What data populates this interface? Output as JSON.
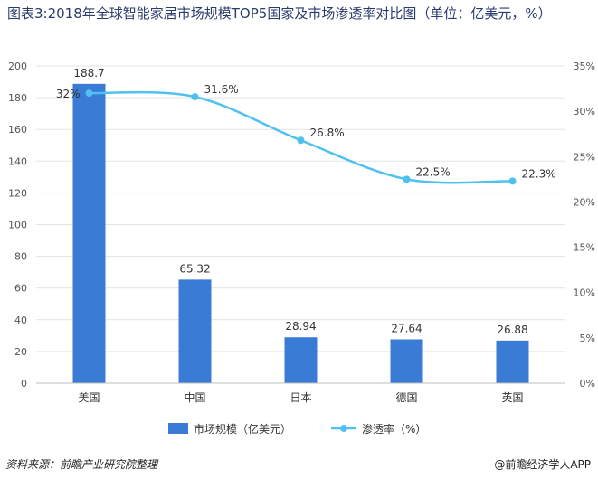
{
  "title": "图表3:2018年全球智能家居市场规模TOP5国家及市场渗透率对比图（单位：亿美元，%）",
  "source": "资料来源：前瞻产业研究院整理",
  "credit": "@前瞻经济学人APP",
  "colors": {
    "bar": "#3a7bd5",
    "line": "#4fc1f0",
    "grid": "#e3e3e3"
  },
  "chart_data": {
    "type": "bar",
    "categories": [
      "美国",
      "中国",
      "日本",
      "德国",
      "英国"
    ],
    "series": [
      {
        "name": "市场规模（亿美元）",
        "type": "bar",
        "axis": "left",
        "values": [
          188.7,
          65.32,
          28.94,
          27.64,
          26.88
        ],
        "labels": [
          "188.7",
          "65.32",
          "28.94",
          "27.64",
          "26.88"
        ]
      },
      {
        "name": "渗透率（%）",
        "type": "line",
        "axis": "right",
        "values": [
          32,
          31.6,
          26.8,
          22.5,
          22.3
        ],
        "labels": [
          "32%",
          "31.6%",
          "26.8%",
          "22.5%",
          "22.3%"
        ]
      }
    ],
    "ylim": [
      0,
      200
    ],
    "y_ticks": [
      "0",
      "20",
      "40",
      "60",
      "80",
      "100",
      "120",
      "140",
      "160",
      "180",
      "200"
    ],
    "y2lim": [
      0,
      35
    ],
    "y2_ticks": [
      "0%",
      "5%",
      "10%",
      "15%",
      "20%",
      "25%",
      "30%",
      "35%"
    ],
    "grid": true,
    "legend": "bottom"
  }
}
